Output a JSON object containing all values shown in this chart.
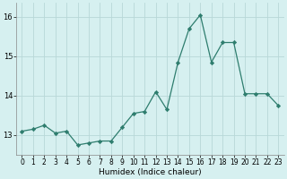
{
  "x": [
    0,
    1,
    2,
    3,
    4,
    5,
    6,
    7,
    8,
    9,
    10,
    11,
    12,
    13,
    14,
    15,
    16,
    17,
    18,
    19,
    20,
    21,
    22,
    23
  ],
  "y": [
    13.1,
    13.15,
    13.25,
    13.05,
    13.1,
    12.75,
    12.8,
    12.85,
    12.85,
    13.2,
    13.55,
    13.6,
    14.1,
    13.65,
    14.85,
    15.7,
    16.05,
    14.85,
    15.35,
    15.35,
    14.05,
    14.05,
    14.05,
    13.75
  ],
  "xlabel": "Humidex (Indice chaleur)",
  "ylim": [
    12.5,
    16.35
  ],
  "xlim": [
    -0.5,
    23.5
  ],
  "yticks": [
    13,
    14,
    15,
    16
  ],
  "xticks": [
    0,
    1,
    2,
    3,
    4,
    5,
    6,
    7,
    8,
    9,
    10,
    11,
    12,
    13,
    14,
    15,
    16,
    17,
    18,
    19,
    20,
    21,
    22,
    23
  ],
  "line_color": "#2e7d6e",
  "marker_color": "#2e7d6e",
  "bg_color": "#d6f0f0",
  "grid_color": "#b8d8d8",
  "fig_bg": "#d6f0f0",
  "tick_fontsize": 5.5,
  "xlabel_fontsize": 6.5,
  "marker_size": 2.2,
  "line_width": 0.9
}
